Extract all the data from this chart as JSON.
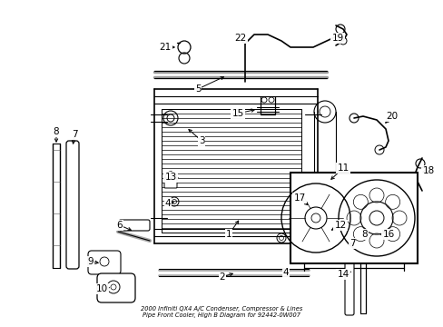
{
  "title": "2000 Infiniti QX4 A/C Condenser, Compressor & Lines\nPipe Front Cooler, High B Diagram for 92442-0W007",
  "bg_color": "#ffffff",
  "line_color": "#000000",
  "text_color": "#000000",
  "fig_width": 4.89,
  "fig_height": 3.6,
  "dpi": 100
}
